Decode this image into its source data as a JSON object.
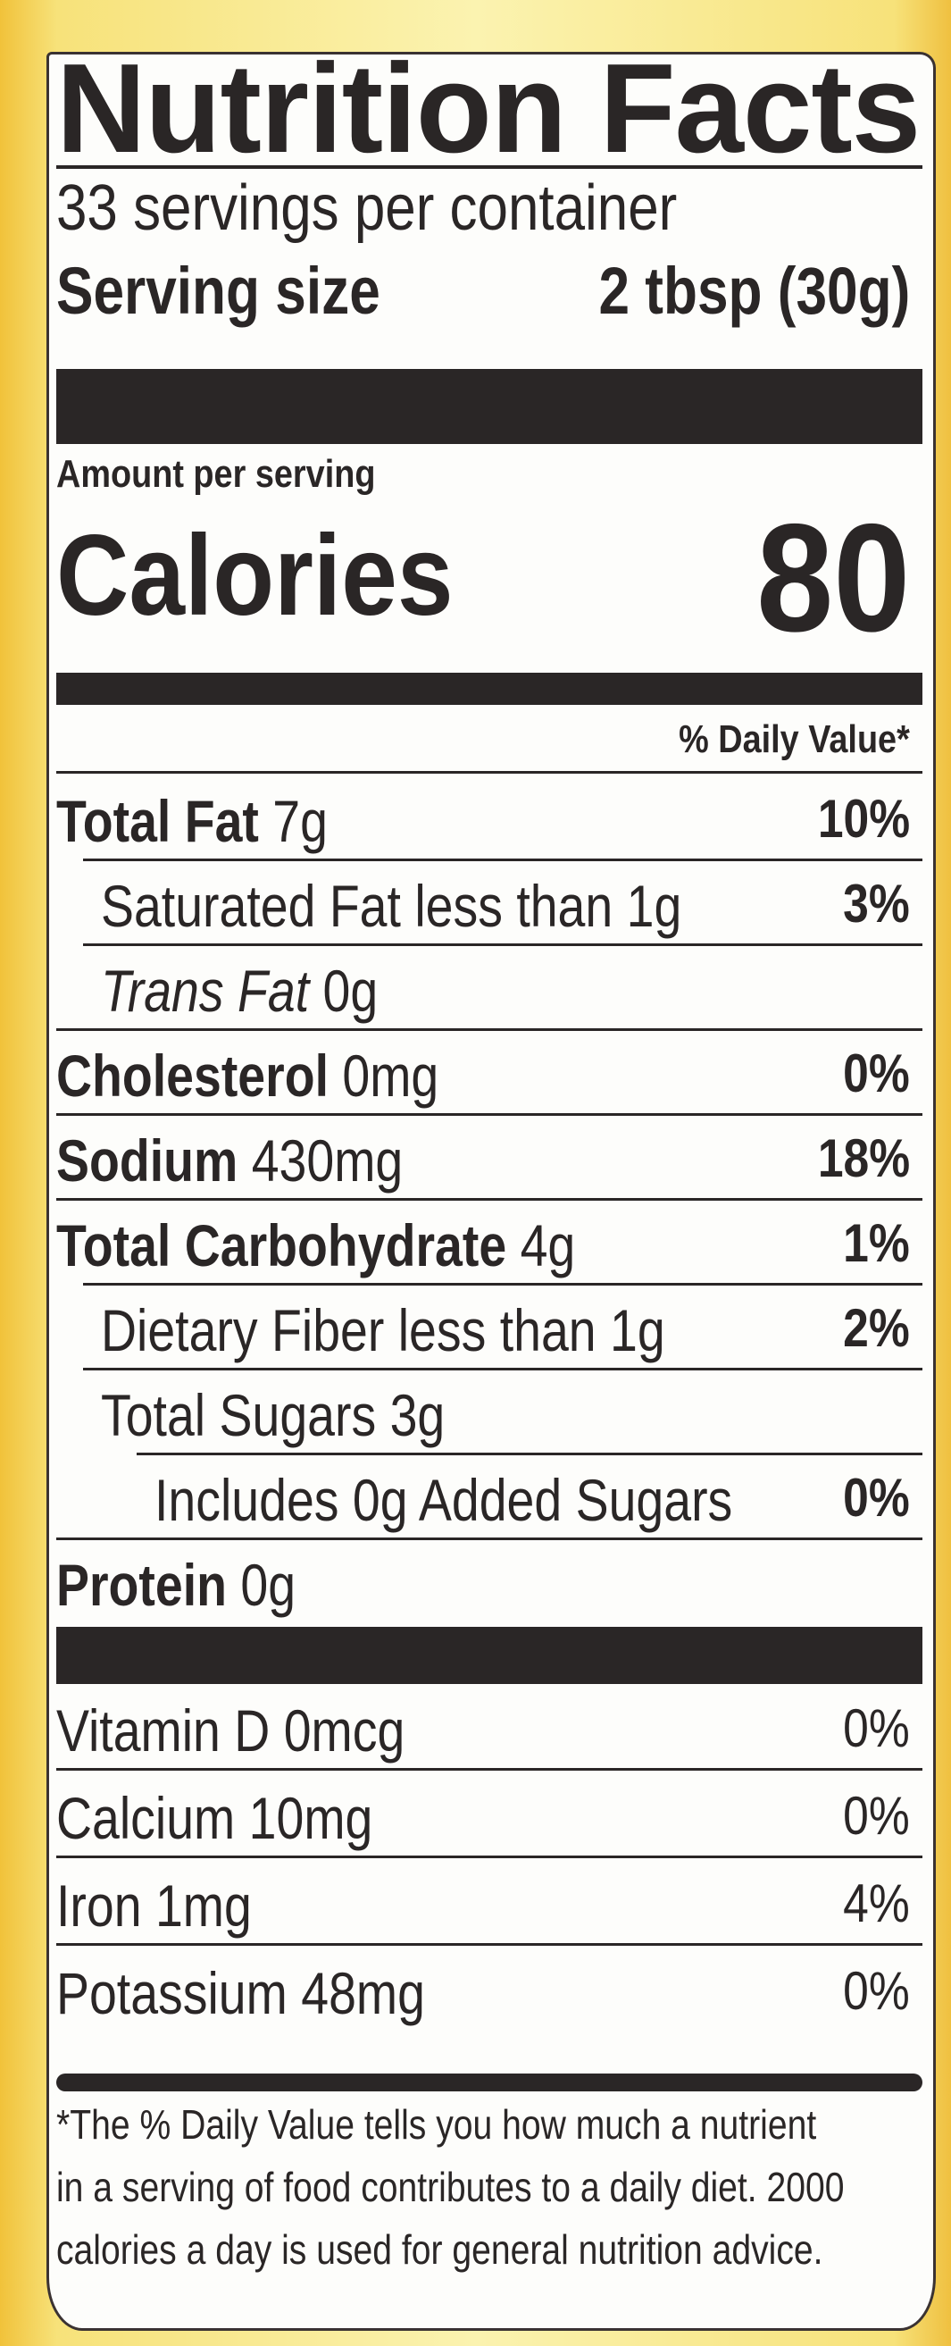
{
  "title": "Nutrition Facts",
  "servings_per_container": "33 servings per container",
  "serving_size_label": "Serving size",
  "serving_size_value": "2 tbsp (30g)",
  "amount_per_serving": "Amount per serving",
  "calories_label": "Calories",
  "calories_value": "80",
  "daily_value_header": "% Daily Value*",
  "nutrients": [
    {
      "name": "Total Fat",
      "amount": "7g",
      "dv": "10%",
      "bold": true,
      "indent": 0
    },
    {
      "name": "Saturated Fat",
      "amount": "less than 1g",
      "dv": "3%",
      "bold": false,
      "indent": 1
    },
    {
      "name": "Trans Fat",
      "amount": "0g",
      "dv": "",
      "bold": false,
      "indent": 1,
      "italic_name": true
    },
    {
      "name": "Cholesterol",
      "amount": "0mg",
      "dv": "0%",
      "bold": true,
      "indent": 0
    },
    {
      "name": "Sodium",
      "amount": "430mg",
      "dv": "18%",
      "bold": true,
      "indent": 0
    },
    {
      "name": "Total Carbohydrate",
      "amount": "4g",
      "dv": "1%",
      "bold": true,
      "indent": 0
    },
    {
      "name": "Dietary Fiber",
      "amount": "less than 1g",
      "dv": "2%",
      "bold": false,
      "indent": 1
    },
    {
      "name": "Total Sugars",
      "amount": "3g",
      "dv": "",
      "bold": false,
      "indent": 1
    },
    {
      "name": "Includes 0g Added Sugars",
      "amount": "",
      "dv": "0%",
      "bold": false,
      "indent": 2
    },
    {
      "name": "Protein",
      "amount": "0g",
      "dv": "",
      "bold": true,
      "indent": 0
    }
  ],
  "vitamins": [
    {
      "name": "Vitamin D",
      "amount": "0mcg",
      "dv": "0%"
    },
    {
      "name": "Calcium",
      "amount": "10mg",
      "dv": "0%"
    },
    {
      "name": "Iron",
      "amount": "1mg",
      "dv": "4%"
    },
    {
      "name": "Potassium",
      "amount": "48mg",
      "dv": "0%"
    }
  ],
  "footnote": [
    "*The % Daily Value tells you how much a nutrient",
    "in a serving of food contributes to a daily diet. 2000",
    "calories a day is used for general nutrition advice."
  ],
  "colors": {
    "ink": "#2a2626",
    "label_bg": "#fdfdfb",
    "package_yellow": "#f7e27a"
  }
}
